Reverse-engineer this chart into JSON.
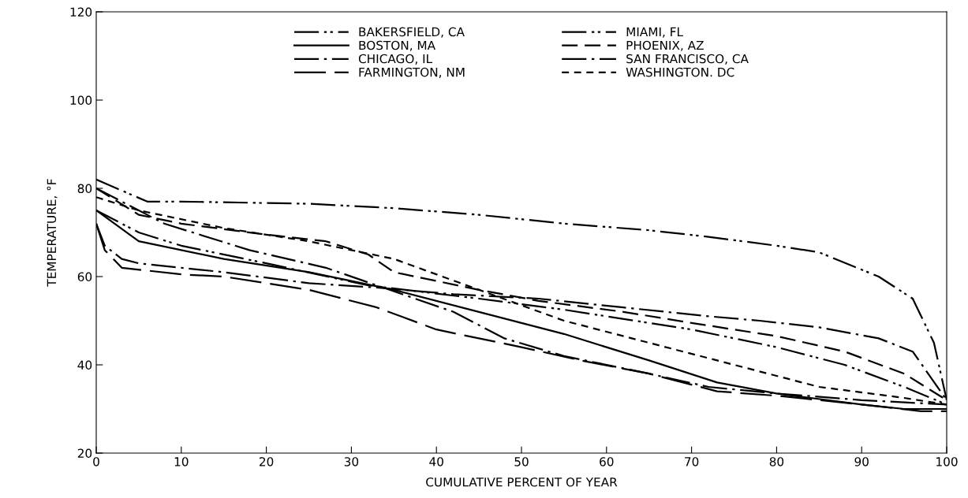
{
  "chart_data": {
    "type": "line",
    "xlabel": "CUMULATIVE PERCENT OF YEAR",
    "ylabel": "TEMPERATURE, °F",
    "xlim": [
      0,
      100
    ],
    "ylim": [
      20,
      120
    ],
    "xticks": [
      0,
      10,
      20,
      30,
      40,
      50,
      60,
      70,
      80,
      90,
      100
    ],
    "yticks": [
      20,
      40,
      60,
      80,
      100,
      120
    ],
    "grid": false,
    "legend": "top",
    "marker": "none",
    "series": [
      {
        "name": "BAKERSFIELD, CA",
        "color": "#000000",
        "line_style": "dashdotdot",
        "x": [
          0,
          5,
          10,
          20,
          32,
          45,
          55,
          70,
          80,
          88,
          95,
          100
        ],
        "values": [
          75,
          70,
          67,
          63,
          58,
          55,
          52.5,
          48,
          44,
          40,
          35,
          31
        ]
      },
      {
        "name": "BOSTON, MA",
        "color": "#000000",
        "line_style": "solid",
        "x": [
          0,
          5,
          15,
          25,
          35,
          45,
          55,
          65,
          73,
          80,
          90,
          95,
          100
        ],
        "values": [
          75,
          68,
          64,
          61,
          57,
          52,
          47,
          41,
          36,
          33.5,
          31,
          30,
          30
        ]
      },
      {
        "name": "CHICAGO, IL",
        "color": "#000000",
        "line_style": "dashdot",
        "x": [
          0,
          8,
          18,
          27,
          33,
          42,
          48,
          55,
          65,
          72,
          80,
          90,
          100
        ],
        "values": [
          80,
          72,
          66,
          62,
          58,
          52,
          46,
          42,
          38,
          35,
          33.5,
          32,
          31
        ]
      },
      {
        "name": "FARMINGTON, NM",
        "color": "#000000",
        "line_style": "longdash",
        "x": [
          0,
          1,
          3,
          10,
          15,
          25,
          33,
          40,
          50,
          57,
          65,
          73,
          80,
          90,
          97,
          100
        ],
        "values": [
          72,
          66,
          62,
          60.5,
          60,
          57,
          53,
          48,
          44,
          41,
          38,
          34,
          33,
          31,
          29.5,
          29.5
        ]
      },
      {
        "name": "MIAMI, FL",
        "color": "#000000",
        "line_style": "dashdotdot",
        "x": [
          0,
          6,
          10,
          25,
          35,
          45,
          55,
          65,
          72,
          80,
          85,
          92,
          96,
          98.5,
          100
        ],
        "values": [
          82,
          77,
          77,
          76.5,
          75.5,
          74,
          72,
          70.5,
          69,
          67,
          65.5,
          60,
          55,
          45,
          32
        ]
      },
      {
        "name": "PHOENIX, AZ",
        "color": "#000000",
        "line_style": "dashed",
        "x": [
          0,
          5,
          10,
          20,
          27,
          32,
          35,
          45,
          52,
          62,
          70,
          80,
          88,
          95,
          100
        ],
        "values": [
          80,
          74,
          72,
          69.5,
          68,
          65,
          61,
          57,
          54.5,
          52,
          49.5,
          46.5,
          43,
          38,
          32
        ]
      },
      {
        "name": "SAN FRANCISCO, CA",
        "color": "#000000",
        "line_style": "dashdot",
        "x": [
          0,
          1,
          3,
          5,
          15,
          25,
          33,
          42,
          52,
          62,
          72,
          78,
          85,
          92,
          96,
          100
        ],
        "values": [
          72,
          67,
          64,
          63,
          61,
          58.5,
          57.5,
          56,
          55,
          53,
          51,
          50,
          48.5,
          46,
          43,
          32
        ]
      },
      {
        "name": "WASHINGTON. DC",
        "color": "#000000",
        "line_style": "dotted",
        "x": [
          0,
          5,
          15,
          25,
          35,
          45,
          55,
          65,
          75,
          85,
          95,
          100
        ],
        "values": [
          78,
          75,
          71,
          68,
          64,
          57,
          50,
          45,
          40,
          35,
          32.5,
          31
        ]
      }
    ]
  }
}
